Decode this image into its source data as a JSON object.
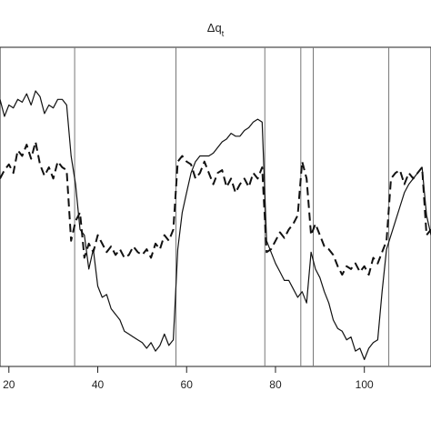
{
  "chart_data": {
    "type": "line",
    "title": "Δq",
    "title_subscript": "t",
    "xlabel": "",
    "ylabel": "",
    "xlim": [
      18,
      115
    ],
    "ylim": [
      0,
      100
    ],
    "x_ticks": [
      20,
      40,
      60,
      80,
      100
    ],
    "x_tick_labels": [
      "20",
      "40",
      "60",
      "80",
      "100"
    ],
    "grid": false,
    "legend": "none",
    "vertical_lines": [
      34.8,
      57.6,
      77.6,
      85.7,
      88.5,
      105.5
    ],
    "series": [
      {
        "style": "solid",
        "color": "#111111",
        "x": [
          18,
          19,
          20,
          21,
          22,
          23,
          24,
          25,
          26,
          27,
          28,
          29,
          30,
          31,
          32,
          33,
          34,
          35,
          36,
          37,
          38,
          39,
          40,
          41,
          42,
          43,
          44,
          45,
          46,
          47,
          48,
          49,
          50,
          51,
          52,
          53,
          54,
          55,
          56,
          57,
          58,
          59,
          60,
          61,
          62,
          63,
          64,
          65,
          66,
          67,
          68,
          69,
          70,
          71,
          72,
          73,
          74,
          75,
          76,
          77,
          78,
          79,
          80,
          81,
          82,
          83,
          84,
          85,
          86,
          87,
          88,
          89,
          90,
          91,
          92,
          93,
          94,
          95,
          96,
          97,
          98,
          99,
          100,
          101,
          102,
          103,
          104,
          105,
          106,
          107,
          108,
          109,
          110,
          111,
          112,
          113,
          114,
          115
        ],
        "y": [
          88,
          82,
          86,
          85,
          88,
          87,
          90,
          86,
          91,
          89,
          83,
          86,
          85,
          88,
          88,
          86,
          68,
          58,
          42,
          40,
          28,
          35,
          22,
          18,
          19,
          14,
          12,
          10,
          6,
          5,
          4,
          3,
          2,
          0,
          2,
          -1,
          1,
          5,
          1,
          3,
          35,
          48,
          55,
          62,
          66,
          68,
          68,
          68,
          69,
          71,
          73,
          74,
          76,
          75,
          75,
          77,
          78,
          80,
          81,
          80,
          38,
          34,
          30,
          27,
          24,
          24,
          21,
          18,
          20,
          16,
          34,
          28,
          25,
          20,
          16,
          10,
          7,
          6,
          3,
          4,
          -1,
          0,
          -4,
          0,
          2,
          3,
          20,
          35,
          40,
          45,
          50,
          55,
          58,
          60,
          62,
          64,
          47,
          40
        ]
      },
      {
        "style": "dashed",
        "color": "#111111",
        "x": [
          18,
          19,
          20,
          21,
          22,
          23,
          24,
          25,
          26,
          27,
          28,
          29,
          30,
          31,
          32,
          33,
          34,
          35,
          36,
          37,
          38,
          39,
          40,
          41,
          42,
          43,
          44,
          45,
          46,
          47,
          48,
          49,
          50,
          51,
          52,
          53,
          54,
          55,
          56,
          57,
          58,
          59,
          60,
          61,
          62,
          63,
          64,
          65,
          66,
          67,
          68,
          69,
          70,
          71,
          72,
          73,
          74,
          75,
          76,
          77,
          78,
          79,
          80,
          81,
          82,
          83,
          84,
          85,
          86,
          87,
          88,
          89,
          90,
          91,
          92,
          93,
          94,
          95,
          96,
          97,
          98,
          99,
          100,
          101,
          102,
          103,
          104,
          105,
          106,
          107,
          108,
          109,
          110,
          111,
          112,
          113,
          114,
          115
        ],
        "y": [
          60,
          63,
          65,
          62,
          70,
          68,
          72,
          67,
          73,
          65,
          61,
          64,
          60,
          66,
          64,
          63,
          38,
          45,
          48,
          32,
          37,
          34,
          40,
          37,
          34,
          36,
          33,
          35,
          32,
          33,
          36,
          34,
          33,
          35,
          32,
          37,
          35,
          40,
          38,
          42,
          66,
          68,
          66,
          65,
          60,
          62,
          66,
          62,
          58,
          62,
          63,
          57,
          60,
          55,
          58,
          60,
          57,
          62,
          60,
          64,
          34,
          35,
          38,
          41,
          39,
          42,
          44,
          47,
          66,
          60,
          40,
          44,
          40,
          36,
          35,
          33,
          29,
          26,
          29,
          28,
          30,
          27,
          29,
          26,
          32,
          30,
          34,
          38,
          60,
          62,
          63,
          58,
          62,
          60,
          62,
          64,
          40,
          42
        ]
      }
    ]
  }
}
